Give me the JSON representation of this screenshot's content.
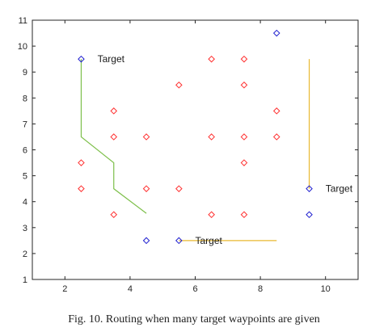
{
  "chart_data": {
    "type": "scatter",
    "title": "",
    "xlabel": "",
    "ylabel": "",
    "xlim": [
      1,
      11
    ],
    "ylim": [
      1,
      11
    ],
    "xticks": [
      2,
      4,
      6,
      8,
      10
    ],
    "yticks": [
      1,
      2,
      3,
      4,
      5,
      6,
      7,
      8,
      9,
      10,
      11
    ],
    "grid": false,
    "colors": {
      "red_marker": "#ff3030",
      "blue_marker": "#2020d0",
      "green_line": "#7dbf4a",
      "yellow_line": "#e8b830"
    },
    "series": [
      {
        "marker": "diamond",
        "color": "red",
        "points": [
          [
            2.5,
            5.5
          ],
          [
            2.5,
            4.5
          ],
          [
            3.5,
            7.5
          ],
          [
            3.5,
            6.5
          ],
          [
            3.5,
            3.5
          ],
          [
            4.5,
            6.5
          ],
          [
            4.5,
            4.5
          ],
          [
            5.5,
            8.5
          ],
          [
            5.5,
            4.5
          ],
          [
            6.5,
            9.5
          ],
          [
            6.5,
            6.5
          ],
          [
            6.5,
            3.5
          ],
          [
            7.5,
            9.5
          ],
          [
            7.5,
            8.5
          ],
          [
            7.5,
            6.5
          ],
          [
            7.5,
            5.5
          ],
          [
            7.5,
            3.5
          ],
          [
            8.5,
            7.5
          ],
          [
            8.5,
            6.5
          ]
        ]
      },
      {
        "marker": "diamond",
        "color": "blue",
        "points": [
          [
            2.5,
            9.5
          ],
          [
            4.5,
            2.5
          ],
          [
            5.5,
            2.5
          ],
          [
            8.5,
            10.5
          ],
          [
            9.5,
            4.5
          ],
          [
            9.5,
            3.5
          ]
        ]
      }
    ],
    "lines": [
      {
        "color": "green",
        "points": [
          [
            2.5,
            9.5
          ],
          [
            2.5,
            6.5
          ],
          [
            3.5,
            5.5
          ],
          [
            3.5,
            4.5
          ],
          [
            4.5,
            3.55
          ]
        ]
      },
      {
        "color": "yellow",
        "points": [
          [
            9.5,
            9.5
          ],
          [
            9.5,
            4.5
          ]
        ]
      },
      {
        "color": "yellow",
        "points": [
          [
            5.5,
            2.5
          ],
          [
            8.5,
            2.5
          ]
        ]
      }
    ],
    "annotations": [
      {
        "text": "Target",
        "x": 3.0,
        "y": 9.5
      },
      {
        "text": "Target",
        "x": 6.0,
        "y": 2.5
      },
      {
        "text": "Target",
        "x": 10.0,
        "y": 4.5
      }
    ]
  },
  "caption": "Fig. 10. Routing when many target waypoints are given"
}
